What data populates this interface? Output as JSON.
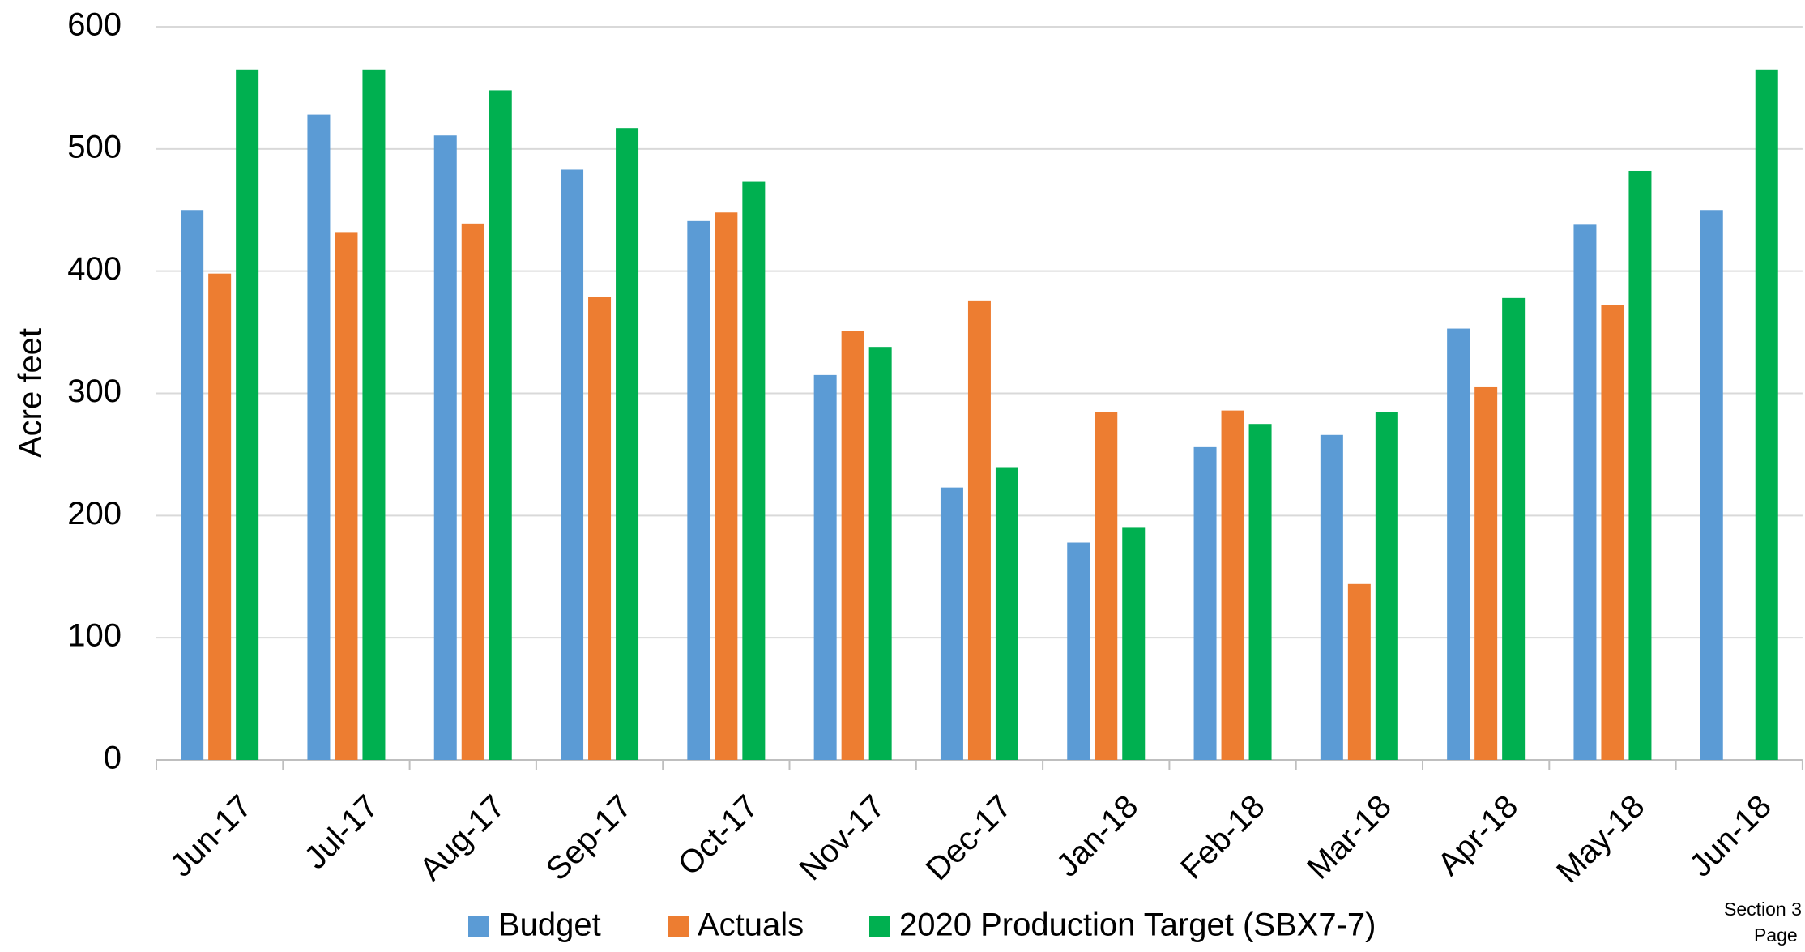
{
  "chart_data": {
    "type": "bar",
    "y_label": "Acre feet",
    "categories": [
      "Jun-17",
      "Jul-17",
      "Aug-17",
      "Sep-17",
      "Oct-17",
      "Nov-17",
      "Dec-17",
      "Jan-18",
      "Feb-18",
      "Mar-18",
      "Apr-18",
      "May-18",
      "Jun-18"
    ],
    "series": [
      {
        "name": "Budget",
        "color": "#5b9bd5",
        "values": [
          450,
          528,
          511,
          483,
          441,
          315,
          223,
          178,
          256,
          266,
          353,
          438,
          450
        ]
      },
      {
        "name": "Actuals",
        "color": "#ed7d31",
        "values": [
          398,
          432,
          439,
          379,
          448,
          351,
          376,
          285,
          286,
          144,
          305,
          372,
          null
        ]
      },
      {
        "name": "2020 Production Target (SBX7-7)",
        "color": "#00b050",
        "values": [
          565,
          565,
          548,
          517,
          473,
          338,
          239,
          190,
          275,
          285,
          378,
          482,
          565
        ]
      }
    ],
    "ylim": [
      0,
      600
    ],
    "yticks": [
      0,
      100,
      200,
      300,
      400,
      500,
      600
    ],
    "grid": true,
    "footer": [
      "Section 3",
      "Page"
    ]
  }
}
